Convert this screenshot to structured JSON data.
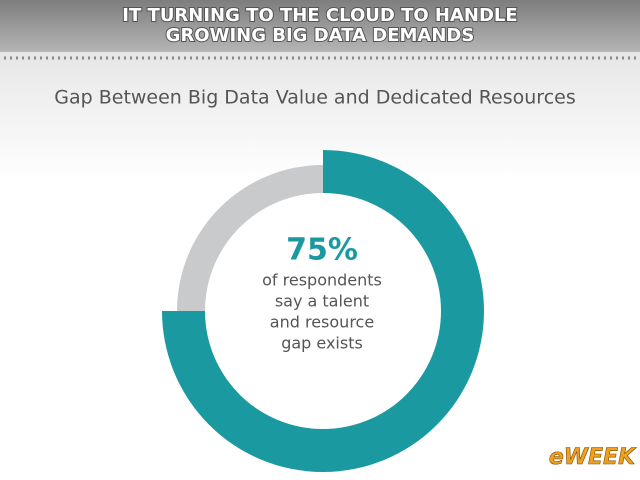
{
  "header": {
    "title": [
      "IT TURNING TO THE CLOUD TO HANDLE",
      "GROWING BIG DATA DEMANDS"
    ]
  },
  "chart_data": {
    "type": "donut",
    "title": "Gap Between Big Data Value and Dedicated Resources",
    "categories": [
      null,
      null
    ],
    "values": [
      75,
      25
    ],
    "value_labels": [
      "75%",
      null
    ],
    "colors": [
      "#1a9aa0",
      "#c9cacc"
    ],
    "center_text": [
      "of respondents",
      "say a talent",
      "and resource",
      "gap exists"
    ]
  },
  "logo": "eWEEK"
}
